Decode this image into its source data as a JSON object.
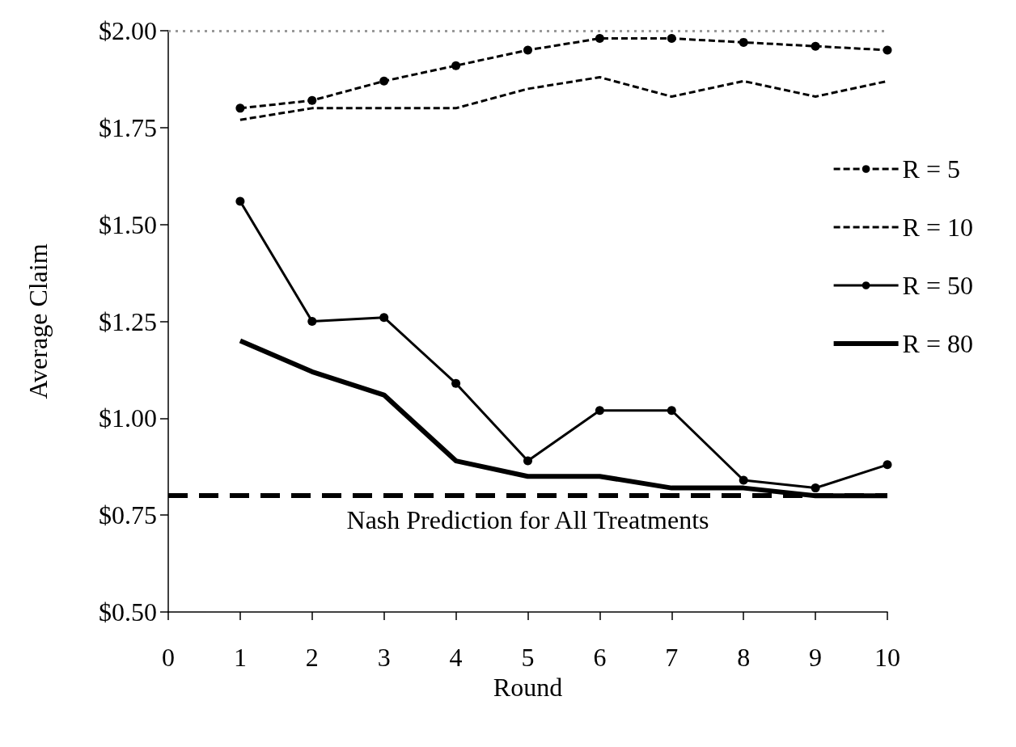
{
  "chart_data": {
    "type": "line",
    "xlabel": "Round",
    "ylabel": "Average Claim",
    "x": [
      1,
      2,
      3,
      4,
      5,
      6,
      7,
      8,
      9,
      10
    ],
    "series": [
      {
        "name": "R = 5",
        "color": "#000000",
        "marker": "circle",
        "line_style": "dashed",
        "values": [
          1.8,
          1.82,
          1.87,
          1.91,
          1.95,
          1.98,
          1.98,
          1.97,
          1.96,
          1.95
        ]
      },
      {
        "name": "R = 10",
        "color": "#000000",
        "marker": "none",
        "line_style": "dashed",
        "values": [
          1.77,
          1.8,
          1.8,
          1.8,
          1.85,
          1.88,
          1.83,
          1.87,
          1.83,
          1.87
        ]
      },
      {
        "name": "R = 50",
        "color": "#000000",
        "marker": "circle",
        "line_style": "solid",
        "values": [
          1.56,
          1.25,
          1.26,
          1.09,
          0.89,
          1.02,
          1.02,
          0.84,
          0.82,
          0.88
        ]
      },
      {
        "name": "R = 80",
        "color": "#000000",
        "marker": "none",
        "line_style": "solid",
        "values": [
          1.2,
          1.12,
          1.06,
          0.89,
          0.85,
          0.85,
          0.82,
          0.82,
          0.8,
          0.8
        ]
      }
    ],
    "xlim": [
      0,
      10
    ],
    "xticks": [
      0,
      1,
      2,
      3,
      4,
      5,
      6,
      7,
      8,
      9,
      10
    ],
    "ylim": [
      0.5,
      2.0
    ],
    "yticks": [
      {
        "value": 0.5,
        "label": "$0.50"
      },
      {
        "value": 0.75,
        "label": "$0.75"
      },
      {
        "value": 1.0,
        "label": "$1.00"
      },
      {
        "value": 1.25,
        "label": "$1.25"
      },
      {
        "value": 1.5,
        "label": "$1.50"
      },
      {
        "value": 1.75,
        "label": "$1.75"
      },
      {
        "value": 2.0,
        "label": "$2.00"
      }
    ],
    "ref_lines": [
      {
        "axis": "y",
        "value": 0.8,
        "label": "Nash Prediction for All Treatments",
        "color": "#000000",
        "line_style": "dashed"
      },
      {
        "axis": "y",
        "value": 2.0,
        "label": null,
        "color": "#999999",
        "line_style": "dotted"
      }
    ],
    "grid": false,
    "legend": "right"
  }
}
